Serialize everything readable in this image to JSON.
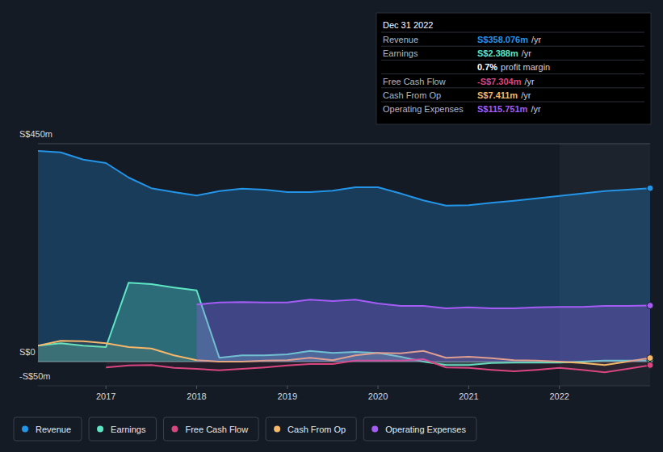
{
  "chart_data": {
    "type": "area",
    "x": [
      2016.25,
      2016.5,
      2016.75,
      2017.0,
      2017.25,
      2017.5,
      2017.75,
      2018.0,
      2018.25,
      2018.5,
      2018.75,
      2019.0,
      2019.25,
      2019.5,
      2019.75,
      2020.0,
      2020.25,
      2020.5,
      2020.75,
      2021.0,
      2021.25,
      2021.5,
      2021.75,
      2022.0,
      2022.25,
      2022.5,
      2022.75,
      2023.0
    ],
    "xlim": [
      2016.25,
      2023.0
    ],
    "xticks": [
      2017,
      2018,
      2019,
      2020,
      2021,
      2022
    ],
    "ylim": [
      -50,
      450
    ],
    "yticks": [
      {
        "value": -50,
        "label": "-S$50m"
      },
      {
        "value": 0,
        "label": "S$0"
      },
      {
        "value": 450,
        "label": "S$450m"
      }
    ],
    "grid": true,
    "legend": "bottom",
    "series": [
      {
        "name": "Revenue",
        "color": "#2394e6",
        "type": "area",
        "values": [
          435,
          432,
          417,
          410,
          380,
          358,
          350,
          343,
          352,
          357,
          355,
          350,
          350,
          353,
          360,
          360,
          347,
          333,
          322,
          323,
          328,
          332,
          337,
          342,
          347,
          352,
          355,
          358.076
        ]
      },
      {
        "name": "Earnings",
        "color": "#5ee6c4",
        "type": "area",
        "values": [
          33,
          38,
          33,
          30,
          163,
          160,
          153,
          147,
          8,
          13,
          13,
          15,
          22,
          18,
          20,
          18,
          10,
          0,
          -7,
          -7,
          -3,
          -2,
          -2,
          -2,
          0,
          2,
          2,
          2.388
        ]
      },
      {
        "name": "Free Cash Flow",
        "color": "#d9467f",
        "type": "line",
        "values": [
          null,
          null,
          null,
          -12,
          -8,
          -7,
          -13,
          -15,
          -18,
          -15,
          -12,
          -8,
          -5,
          -5,
          2,
          2,
          2,
          5,
          -12,
          -13,
          -17,
          -20,
          -17,
          -13,
          -17,
          -22,
          -15,
          -7.304
        ]
      },
      {
        "name": "Cash From Op",
        "color": "#f4b76b",
        "type": "line",
        "values": [
          33,
          43,
          42,
          38,
          30,
          27,
          13,
          3,
          0,
          0,
          2,
          3,
          8,
          3,
          13,
          18,
          17,
          22,
          8,
          10,
          7,
          3,
          2,
          0,
          -3,
          -7,
          0,
          7.411
        ]
      },
      {
        "name": "Operating Expenses",
        "color": "#a55cf5",
        "type": "area",
        "values": [
          null,
          null,
          null,
          null,
          null,
          null,
          null,
          118,
          122,
          123,
          122,
          122,
          128,
          125,
          128,
          120,
          115,
          115,
          110,
          112,
          110,
          110,
          112,
          113,
          113,
          115,
          115,
          115.751
        ]
      }
    ],
    "annotations": {
      "date": "Dec 31 2022",
      "rows": [
        {
          "label": "Revenue",
          "value": "S$358.076m",
          "unit": "/yr"
        },
        {
          "label": "Earnings",
          "value": "S$2.388m",
          "unit": "/yr"
        },
        {
          "value": "0.7%",
          "unit": "profit margin"
        },
        {
          "label": "Free Cash Flow",
          "value": "-S$7.304m",
          "unit": "/yr"
        },
        {
          "label": "Cash From Op",
          "value": "S$7.411m",
          "unit": "/yr"
        },
        {
          "label": "Operating Expenses",
          "value": "S$115.751m",
          "unit": "/yr"
        }
      ]
    }
  }
}
